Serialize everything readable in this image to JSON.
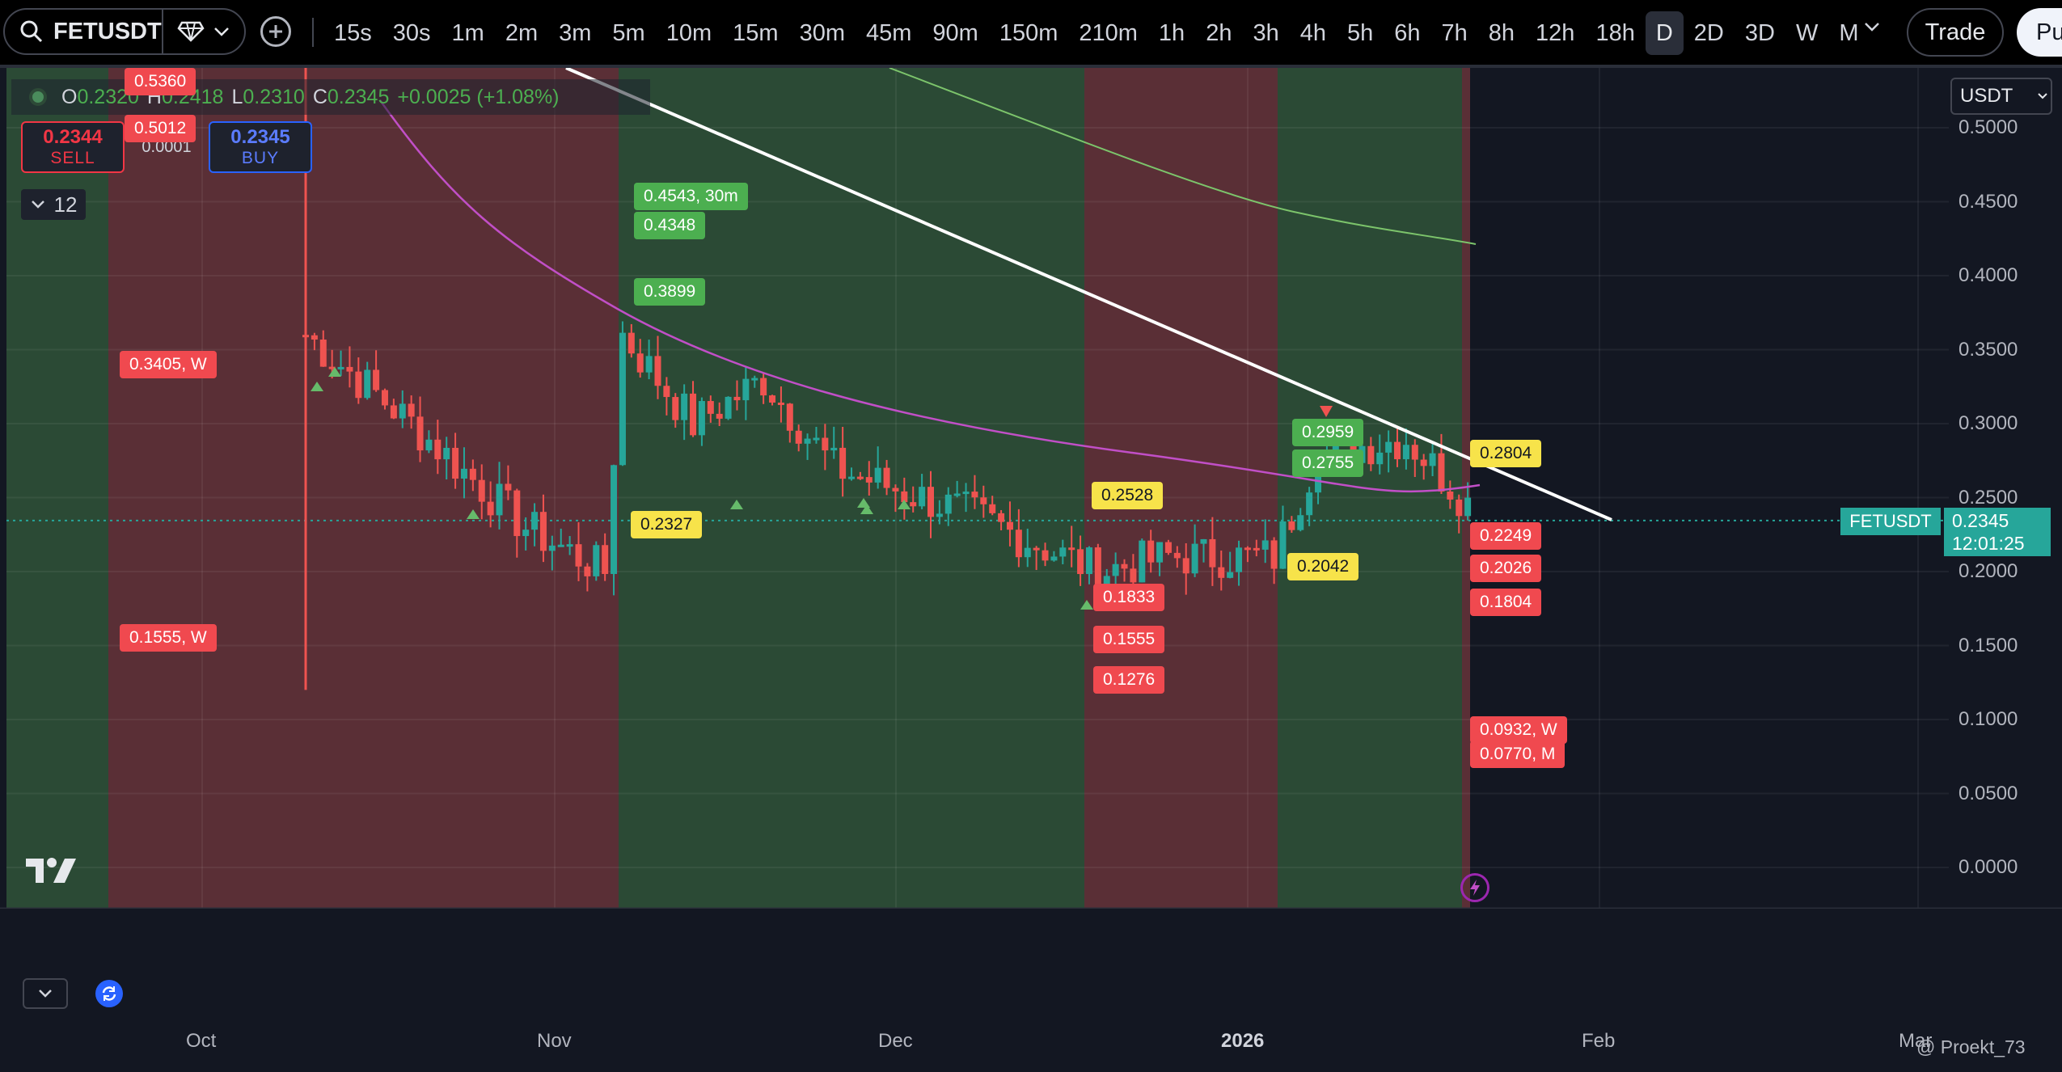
{
  "toolbar": {
    "symbol": "FETUSDT",
    "intervals": [
      "15s",
      "30s",
      "1m",
      "2m",
      "3m",
      "5m",
      "10m",
      "15m",
      "30m",
      "45m",
      "90m",
      "150m",
      "210m",
      "1h",
      "2h",
      "3h",
      "4h",
      "5h",
      "6h",
      "7h",
      "8h",
      "12h",
      "18h",
      "D",
      "2D",
      "3D",
      "W",
      "M"
    ],
    "active_interval": "D",
    "trade_label": "Trade",
    "publish_label": "Pu"
  },
  "legend": {
    "open_key": "O",
    "open": "0.2320",
    "high_key": "H",
    "high": "0.2418",
    "low_key": "L",
    "low": "0.2310",
    "close_key": "C",
    "close": "0.2345",
    "change": "+0.0025 (+1.08%)"
  },
  "trade_widget": {
    "sell_price": "0.2344",
    "sell_label": "SELL",
    "spread": "0.0001",
    "buy_price": "0.2345",
    "buy_label": "BUY"
  },
  "indicators_count": "12",
  "price_axis": {
    "currency": "USDT",
    "ticks": [
      "0.5000",
      "0.4500",
      "0.4000",
      "0.3500",
      "0.3000",
      "0.2500",
      "0.2000",
      "0.1500",
      "0.1000",
      "0.0500",
      "0.0000"
    ],
    "symbol_tag": "FETUSDT",
    "last_price": "0.2345",
    "countdown": "12:01:25"
  },
  "time_axis": [
    "Oct",
    "Nov",
    "Dec",
    "2026",
    "Feb",
    "Mar"
  ],
  "watermark": "@ Proekt_73",
  "level_labels": [
    {
      "text": "0.5360",
      "color": "red"
    },
    {
      "text": "0.5012",
      "color": "red"
    },
    {
      "text": "0.3405, W",
      "color": "red"
    },
    {
      "text": "0.1555, W",
      "color": "red"
    },
    {
      "text": "0.4543, 30m",
      "color": "green"
    },
    {
      "text": "0.4348",
      "color": "green"
    },
    {
      "text": "0.3899",
      "color": "green"
    },
    {
      "text": "0.2327",
      "color": "yellow"
    },
    {
      "text": "0.2528",
      "color": "yellow"
    },
    {
      "text": "0.1833",
      "color": "red"
    },
    {
      "text": "0.1555",
      "color": "red"
    },
    {
      "text": "0.1276",
      "color": "red"
    },
    {
      "text": "0.2042",
      "color": "yellow"
    },
    {
      "text": "0.2959",
      "color": "green"
    },
    {
      "text": "0.2755",
      "color": "green"
    },
    {
      "text": "0.2804",
      "color": "yellow"
    },
    {
      "text": "0.2249",
      "color": "red"
    },
    {
      "text": "0.2026",
      "color": "red"
    },
    {
      "text": "0.1804",
      "color": "red"
    },
    {
      "text": "0.0932, W",
      "color": "red"
    },
    {
      "text": "0.0770, M",
      "color": "red"
    }
  ],
  "colors": {
    "up": "#26a69a",
    "down": "#ef5350",
    "zone_green": "#2b4a35",
    "zone_red": "#5a2f36",
    "ma_magenta": "#c14fc7",
    "ma_green": "#7cc46b",
    "trendline": "#ffffff"
  }
}
